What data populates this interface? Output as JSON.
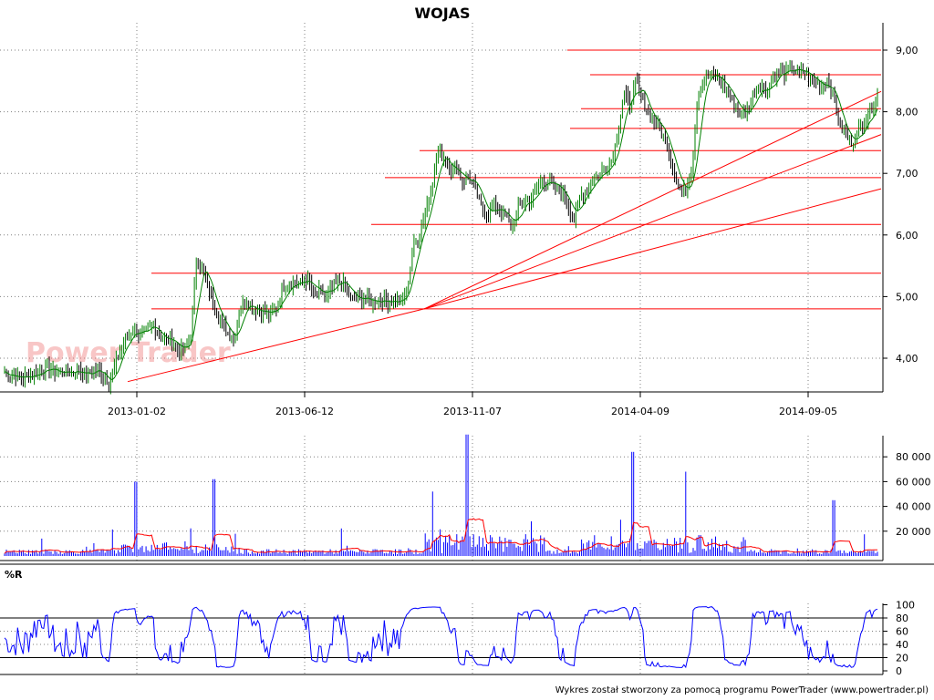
{
  "chart_data": [
    {
      "type": "ohlc",
      "title": "WOJAS",
      "panel": "price",
      "ylim": [
        3.5,
        9.5
      ],
      "yticks": [
        "4,00",
        "5,00",
        "6,00",
        "7,00",
        "8,00",
        "9,00"
      ],
      "ytick_values": [
        4,
        5,
        6,
        7,
        8,
        9
      ],
      "date_labels": [
        "2013-01-02",
        "2013-06-12",
        "2013-11-07",
        "2014-04-09",
        "2014-09-05"
      ],
      "grid": true,
      "colors": {
        "up": "#008000",
        "down": "#000000",
        "lines": "#ff0000"
      },
      "close_series": {
        "name": "",
        "values": [
          3.78,
          3.72,
          3.7,
          3.68,
          3.72,
          3.75,
          3.8,
          3.85,
          3.78,
          3.76,
          3.8,
          3.75,
          3.85,
          3.68,
          3.8,
          3.82,
          3.7,
          3.6,
          3.95,
          4.2,
          4.35,
          4.5,
          4.35,
          4.45,
          4.55,
          4.35,
          4.3,
          4.3,
          4.15,
          4.15,
          4.3,
          5.6,
          5.4,
          5.1,
          4.8,
          4.6,
          4.4,
          4.3,
          4.8,
          4.95,
          4.8,
          4.8,
          4.75,
          4.7,
          4.85,
          5.15,
          5.2,
          5.25,
          5.2,
          5.3,
          5.0,
          5.1,
          5.0,
          5.15,
          5.25,
          5.2,
          4.95,
          4.95,
          5.0,
          4.9,
          4.95,
          4.95,
          4.92,
          4.95,
          4.9,
          5.1,
          5.8,
          6.0,
          6.4,
          6.8,
          7.35,
          7.25,
          7.05,
          7.1,
          6.85,
          6.95,
          6.75,
          6.45,
          6.35,
          6.45,
          6.4,
          6.3,
          6.1,
          6.45,
          6.55,
          6.55,
          6.75,
          6.9,
          6.85,
          6.75,
          6.7,
          6.5,
          6.25,
          6.65,
          6.7,
          6.95,
          6.95,
          7.1,
          7.2,
          7.6,
          8.3,
          8.1,
          8.5,
          8.2,
          7.95,
          7.85,
          7.7,
          7.45,
          7.1,
          6.75,
          6.7,
          7.05,
          8.3,
          8.55,
          8.6,
          8.55,
          8.45,
          8.3,
          8.1,
          7.95,
          8.0,
          8.3,
          8.45,
          8.3,
          8.55,
          8.65,
          8.6,
          8.7,
          8.65,
          8.65,
          8.55,
          8.5,
          8.4,
          8.5,
          8.2,
          7.75,
          7.6,
          7.5,
          7.7,
          7.85,
          8.05,
          8.25
        ]
      },
      "horizontal_lines": [
        9.0,
        8.6,
        8.05,
        7.73,
        7.37,
        6.93,
        6.17,
        5.38,
        4.8
      ],
      "watermark": "Power Trader"
    },
    {
      "type": "bar",
      "panel": "volume",
      "ylim": [
        0,
        100000
      ],
      "yticks": [
        "20 000",
        "40 000",
        "60 000",
        "80 000"
      ],
      "ytick_values": [
        20000,
        40000,
        60000,
        80000
      ],
      "colors": {
        "bars": "#0000ff",
        "average": "#ff0000"
      },
      "spikes": [
        {
          "t": 0.15,
          "value": 60000
        },
        {
          "t": 0.24,
          "value": 62000
        },
        {
          "t": 0.49,
          "value": 52000
        },
        {
          "t": 0.53,
          "value": 98000
        },
        {
          "t": 0.72,
          "value": 84000
        },
        {
          "t": 0.78,
          "value": 68000
        },
        {
          "t": 0.95,
          "value": 45000
        }
      ]
    },
    {
      "type": "line",
      "panel": "oscillator",
      "label": "%R",
      "ylim": [
        0,
        100
      ],
      "yticks": [
        "0",
        "20",
        "40",
        "60",
        "80",
        "100"
      ],
      "ytick_values": [
        0,
        20,
        40,
        60,
        80,
        100
      ],
      "reference_levels": [
        20,
        80
      ],
      "colors": {
        "line": "#0000ff",
        "levels": "#000000"
      }
    }
  ],
  "footer": {
    "credit": "Wykres został stworzony za pomocą programu PowerTrader (www.powertrader.pl)"
  }
}
